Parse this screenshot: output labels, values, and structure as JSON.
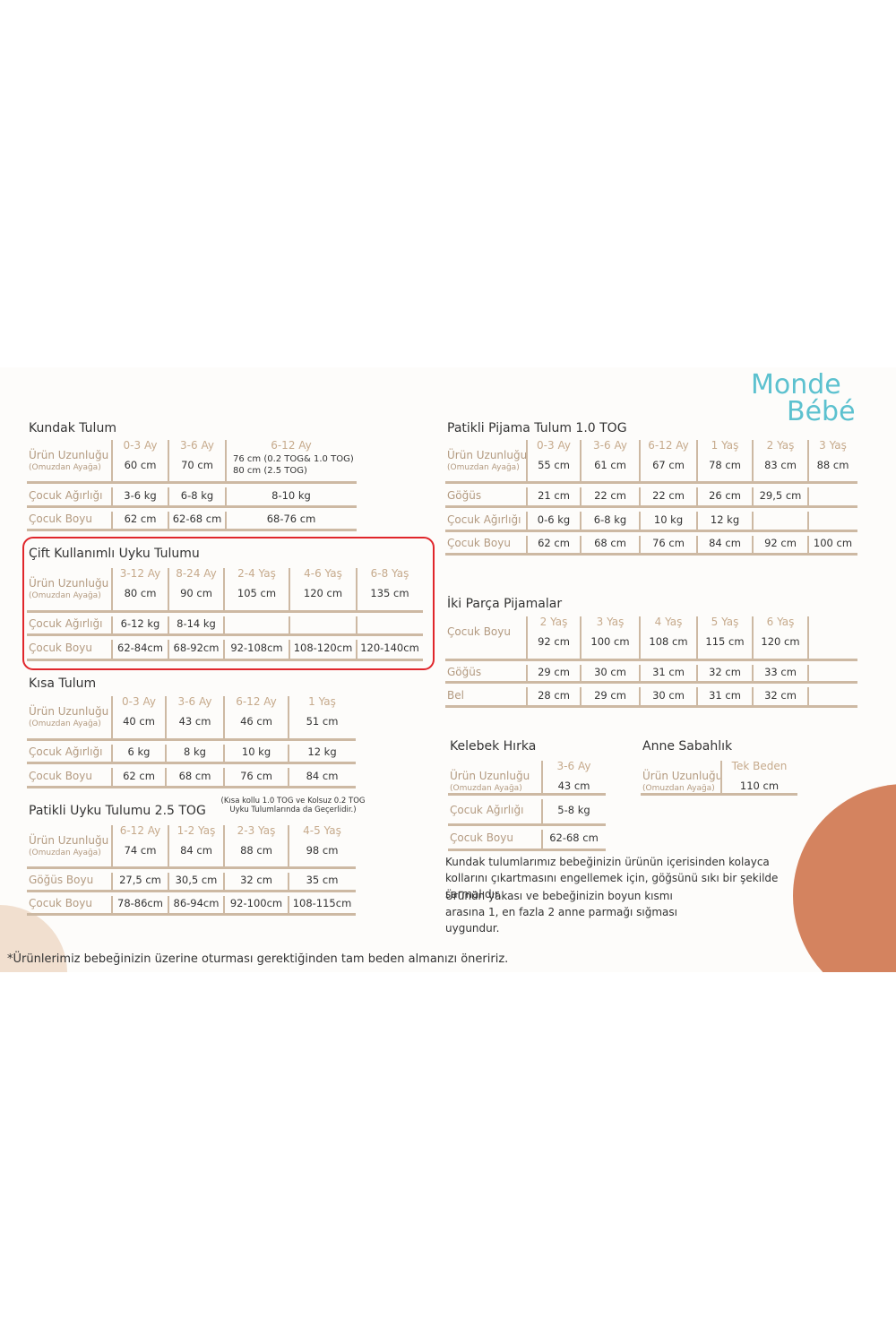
{
  "logo": {
    "line1": "Monde",
    "line2": "Bébé"
  },
  "tables": [
    {
      "title": "Kundak Tulum",
      "header": [
        "0-3 Ay",
        "3-6 Ay",
        "6-12 Ay"
      ],
      "rows": [
        {
          "label": "Ürün Uzunluğu",
          "sublabel": "(Omuzdan Ayağa)",
          "cells": [
            "60 cm",
            "70 cm",
            [
              "76 cm (0.2 TOG& 1.0 TOG)",
              "80 cm (2.5 TOG)"
            ]
          ]
        },
        {
          "label": "Çocuk Ağırlığı",
          "cells": [
            "3-6 kg",
            "6-8 kg",
            "8-10 kg"
          ]
        },
        {
          "label": "Çocuk Boyu",
          "cells": [
            "62 cm",
            "62-68 cm",
            "68-76 cm"
          ]
        }
      ]
    },
    {
      "title": "Çift Kullanımlı Uyku Tulumu",
      "header": [
        "3-12 Ay",
        "8-24 Ay",
        "2-4 Yaş",
        "4-6 Yaş",
        "6-8 Yaş"
      ],
      "rows": [
        {
          "label": "Ürün Uzunluğu",
          "sublabel": "(Omuzdan Ayağa)",
          "cells": [
            "80 cm",
            "90 cm",
            "105  cm",
            "120  cm",
            "135 cm"
          ]
        },
        {
          "label": "Çocuk Ağırlığı",
          "cells": [
            "6-12 kg",
            "8-14 kg",
            null,
            null,
            null
          ]
        },
        {
          "label": "Çocuk Boyu",
          "cells": [
            "62-84cm",
            "68-92cm",
            "92-108cm",
            "108-120cm",
            "120-140cm"
          ]
        }
      ]
    },
    {
      "title": "Kısa Tulum",
      "header": [
        "0-3 Ay",
        "3-6 Ay",
        "6-12 Ay",
        "1 Yaş"
      ],
      "rows": [
        {
          "label": "Ürün Uzunluğu",
          "sublabel": "(Omuzdan Ayağa)",
          "cells": [
            "40 cm",
            "43 cm",
            "46 cm",
            "51 cm"
          ]
        },
        {
          "label": "Çocuk Ağırlığı",
          "cells": [
            "6 kg",
            "8 kg",
            "10 kg",
            "12 kg"
          ]
        },
        {
          "label": "Çocuk Boyu",
          "cells": [
            "62 cm",
            "68 cm",
            "76 cm",
            "84 cm"
          ]
        }
      ]
    },
    {
      "title": "Patikli Uyku Tulumu 2.5 TOG",
      "note": "(Kısa kollu 1.0 TOG ve Kolsuz 0.2 TOG Uyku Tulumlarında da Geçerlidir.)",
      "header": [
        "6-12 Ay",
        "1-2 Yaş",
        "2-3 Yaş",
        "4-5 Yaş"
      ],
      "rows": [
        {
          "label": "Ürün Uzunluğu",
          "sublabel": "(Omuzdan Ayağa)",
          "cells": [
            "74 cm",
            "84 cm",
            "88 cm",
            "98 cm"
          ]
        },
        {
          "label": "Göğüs Boyu",
          "cells": [
            "27,5 cm",
            "30,5 cm",
            "32 cm",
            "35 cm"
          ]
        },
        {
          "label": "Çocuk Boyu",
          "cells": [
            "78-86cm",
            "86-94cm",
            "92-100cm",
            "108-115cm"
          ]
        }
      ]
    },
    {
      "title": "Patikli Pijama Tulum 1.0 TOG",
      "header": [
        "0-3 Ay",
        "3-6 Ay",
        "6-12 Ay",
        "1 Yaş",
        "2 Yaş",
        "3 Yaş"
      ],
      "rows": [
        {
          "label": "Ürün Uzunluğu",
          "sublabel": "(Omuzdan Ayağa)",
          "cells": [
            "55 cm",
            "61 cm",
            "67 cm",
            "78 cm",
            "83 cm",
            "88 cm"
          ]
        },
        {
          "label": "Göğüs",
          "cells": [
            "21 cm",
            "22 cm",
            "22 cm",
            "26 cm",
            "29,5 cm",
            null
          ]
        },
        {
          "label": "Çocuk Ağırlığı",
          "cells": [
            "0-6 kg",
            "6-8 kg",
            "10 kg",
            "12 kg",
            null,
            null
          ]
        },
        {
          "label": "Çocuk Boyu",
          "cells": [
            "62 cm",
            "68 cm",
            "76 cm",
            "84 cm",
            "92 cm",
            "100 cm"
          ]
        }
      ]
    },
    {
      "title": "İki Parça Pijamalar",
      "header": [
        "2 Yaş",
        "3 Yaş",
        "4 Yaş",
        "5 Yaş",
        "6 Yaş"
      ],
      "rows": [
        {
          "label": "Çocuk Boyu",
          "cells": [
            "92 cm",
            "100 cm",
            "108 cm",
            "115 cm",
            "120 cm"
          ]
        },
        {
          "label": "Göğüs",
          "cells": [
            "29 cm",
            "30 cm",
            "31 cm",
            "32 cm",
            "33 cm"
          ]
        },
        {
          "label": "Bel",
          "cells": [
            "28 cm",
            "29 cm",
            "30 cm",
            "31 cm",
            "32 cm"
          ]
        }
      ]
    },
    {
      "title": "Kelebek Hırka",
      "header": [
        "3-6 Ay"
      ],
      "rows": [
        {
          "label": "Ürün Uzunluğu",
          "sublabel": "(Omuzdan Ayağa)",
          "cells": [
            "43 cm"
          ]
        },
        {
          "label": "Çocuk Ağırlığı",
          "cells": [
            "5-8 kg"
          ]
        },
        {
          "label": "Çocuk Boyu",
          "cells": [
            "62-68 cm"
          ]
        }
      ]
    },
    {
      "title": "Anne Sabahlık",
      "header": [
        "Tek Beden"
      ],
      "rows": [
        {
          "label": "Ürün Uzunluğu",
          "sublabel": "(Omuzdan Ayağa)",
          "cells": [
            "110 cm"
          ]
        }
      ]
    }
  ],
  "notes": [
    "Kundak tulumlarımız bebeğinizin ürünün içerisinden kolayca kollarını çıkartmasını engellemek için, göğsünü sıkı bir şekilde sarmalıdır.",
    "Ürünün yakası ve bebeğinizin boyun kısmı arasına 1, en fazla 2 anne parmağı sığması uygundur."
  ],
  "footer": "*Ürünlerimiz bebeğinizin üzerine oturması gerektiğinden tam beden almanızı öneririz."
}
